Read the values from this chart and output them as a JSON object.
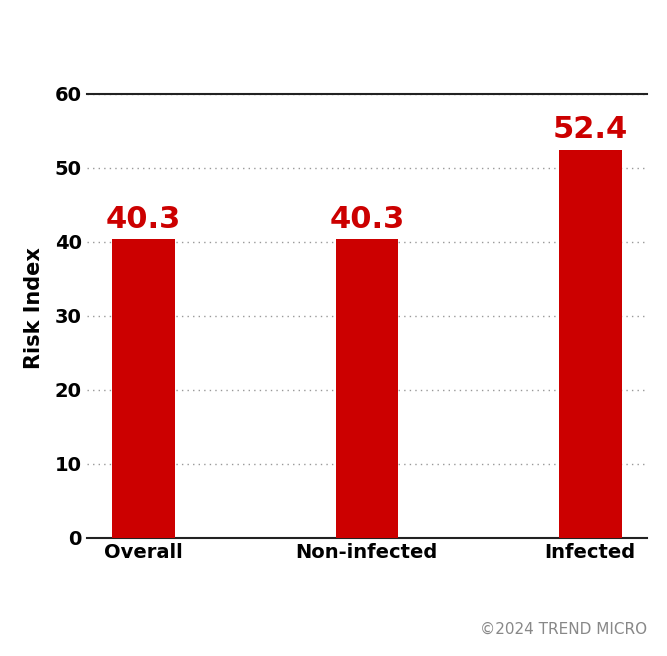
{
  "categories": [
    "Overall",
    "Non-infected",
    "Infected"
  ],
  "values": [
    40.3,
    40.3,
    52.4
  ],
  "bar_color": "#cc0000",
  "label_color": "#cc0000",
  "ylabel": "Risk Index",
  "ylim": [
    0,
    62
  ],
  "yticks": [
    0,
    10,
    20,
    30,
    40,
    50,
    60
  ],
  "bar_width": 0.28,
  "grid_color": "#999999",
  "background_color": "#ffffff",
  "value_labels": [
    "40.3",
    "40.3",
    "52.4"
  ],
  "value_fontsize": 22,
  "axis_label_fontsize": 15,
  "tick_label_fontsize": 14,
  "copyright_text": "©2024 TREND MICRO",
  "copyright_fontsize": 11,
  "copyright_color": "#888888"
}
